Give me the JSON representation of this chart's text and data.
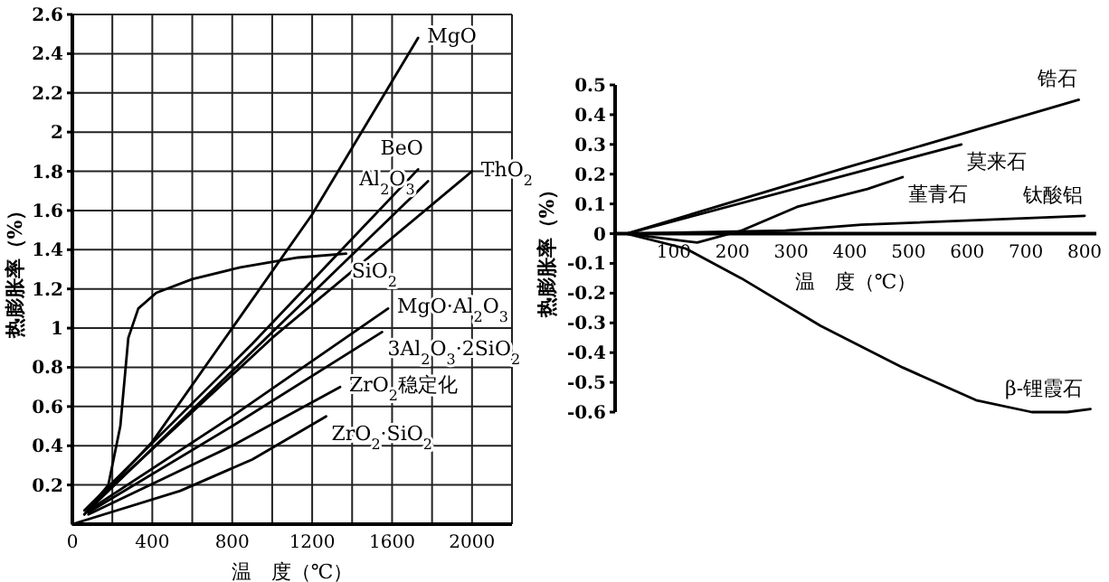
{
  "chart_data": [
    {
      "type": "line",
      "xlabel": "温　度（℃）",
      "ylabel": "热膨胀率（%）",
      "grid": true,
      "xlim": [
        0,
        2200
      ],
      "ylim": [
        0,
        2.6
      ],
      "xticks": [
        0,
        {
          "value": 200,
          "label": null
        },
        400,
        {
          "value": 600,
          "label": null
        },
        800,
        {
          "value": 1000,
          "label": null
        },
        1200,
        {
          "value": 1400,
          "label": null
        },
        1600,
        {
          "value": 1800,
          "label": null
        },
        2000,
        {
          "value": 2200,
          "label": null
        }
      ],
      "yticks": [
        0.2,
        0.4,
        0.6,
        0.8,
        1.0,
        1.2,
        1.4,
        1.6,
        1.8,
        2.0,
        2.2,
        2.4,
        2.6
      ],
      "series": [
        {
          "name": "MgO",
          "color": "#000000",
          "x": [
            60,
            400,
            800,
            1200,
            1730
          ],
          "values": [
            0.05,
            0.42,
            1.0,
            1.58,
            2.48
          ]
        },
        {
          "name": "SiO$_{2}$",
          "color": "#000000",
          "x": [
            60,
            180,
            240,
            280,
            330,
            420,
            600,
            840,
            1130,
            1370
          ],
          "values": [
            0.05,
            0.2,
            0.5,
            0.95,
            1.1,
            1.18,
            1.25,
            1.31,
            1.36,
            1.38
          ]
        },
        {
          "name": "BeO",
          "color": "#000000",
          "x": [
            60,
            900,
            1730
          ],
          "values": [
            0.07,
            0.92,
            1.81
          ]
        },
        {
          "name": "ThO$_{2}$",
          "color": "#000000",
          "x": [
            80,
            1000,
            2000
          ],
          "values": [
            0.08,
            0.95,
            1.8
          ]
        },
        {
          "name": "Al$_{2}$O$_{3}$",
          "color": "#000000",
          "x": [
            80,
            900,
            1780
          ],
          "values": [
            0.07,
            0.88,
            1.75
          ]
        },
        {
          "name": "MgO·Al$_{2}$O$_{3}$",
          "color": "#000000",
          "x": [
            80,
            800,
            1580
          ],
          "values": [
            0.07,
            0.55,
            1.1
          ]
        },
        {
          "name": "3Al$_{2}$O$_{3}$·2SiO$_{2}$",
          "color": "#000000",
          "x": [
            80,
            800,
            1550
          ],
          "values": [
            0.06,
            0.5,
            0.98
          ]
        },
        {
          "name": "ZrO$_{2}$稳定化",
          "color": "#000000",
          "x": [
            80,
            800,
            1340
          ],
          "values": [
            0.05,
            0.4,
            0.7
          ]
        },
        {
          "name": "ZrO$_{2}$·SiO$_{2}$",
          "color": "#000000",
          "x": [
            0,
            540,
            900,
            1270
          ],
          "values": [
            0.0,
            0.17,
            0.33,
            0.55
          ]
        }
      ]
    },
    {
      "type": "line",
      "xlabel": "温　度（℃）",
      "ylabel": "热膨胀率（%）",
      "xlim": [
        0,
        820
      ],
      "ylim": [
        -0.6,
        0.5
      ],
      "xticks": [
        100,
        200,
        300,
        400,
        500,
        600,
        700,
        800
      ],
      "yticks": [
        -0.6,
        -0.5,
        -0.4,
        -0.3,
        -0.2,
        -0.1,
        0,
        0.1,
        0.2,
        0.3,
        0.4,
        0.5
      ],
      "series": [
        {
          "name": "锆石",
          "color": "#000000",
          "x": [
            20,
            390,
            790
          ],
          "values": [
            0.0,
            0.22,
            0.45
          ]
        },
        {
          "name": "莫来石",
          "color": "#000000",
          "x": [
            20,
            590
          ],
          "values": [
            0.0,
            0.3
          ]
        },
        {
          "name": "堇青石",
          "color": "#000000",
          "x": [
            20,
            140,
            215,
            310,
            430,
            490
          ],
          "values": [
            0.0,
            -0.03,
            0.01,
            0.09,
            0.15,
            0.19
          ]
        },
        {
          "name": "钛酸铝",
          "color": "#000000",
          "x": [
            20,
            290,
            420,
            800
          ],
          "values": [
            0.0,
            0.01,
            0.03,
            0.06
          ]
        },
        {
          "name": "β-锂霞石",
          "color": "#000000",
          "x": [
            20,
            120,
            215,
            350,
            490,
            615,
            710,
            770,
            810
          ],
          "values": [
            0.0,
            -0.05,
            -0.15,
            -0.31,
            -0.45,
            -0.56,
            -0.6,
            -0.6,
            -0.59
          ]
        }
      ]
    }
  ]
}
